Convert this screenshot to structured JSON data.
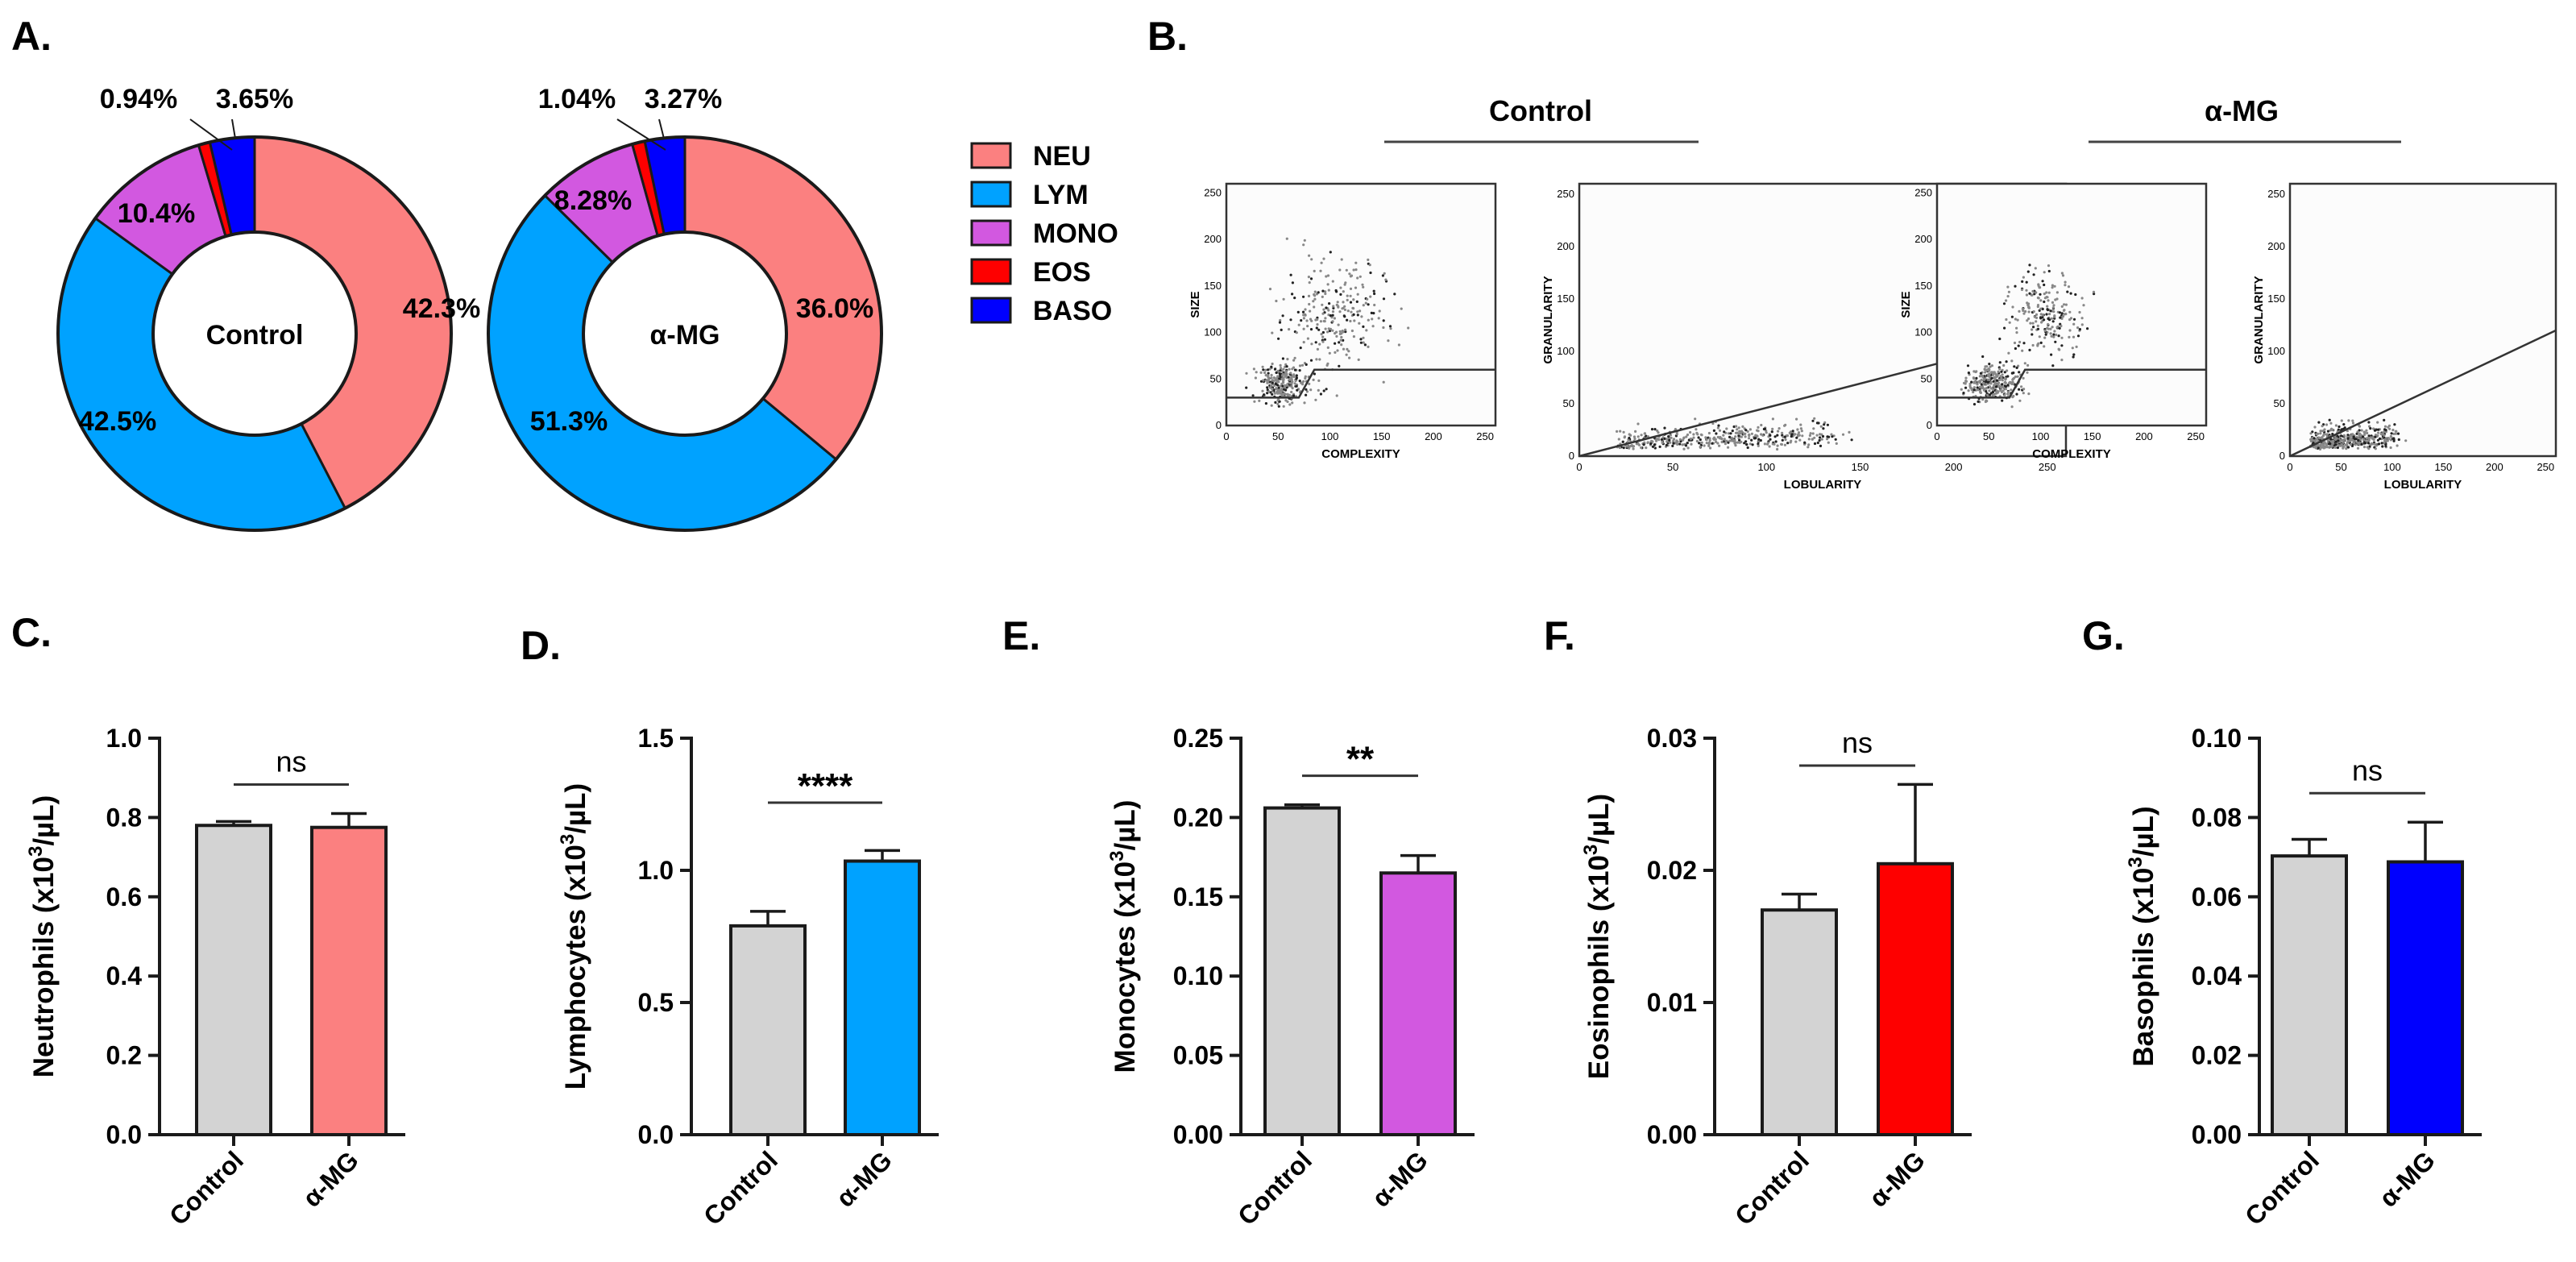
{
  "panels": {
    "A": "A.",
    "B": "B.",
    "C": "C.",
    "D": "D.",
    "E": "E.",
    "F": "F.",
    "G": "G."
  },
  "colors": {
    "NEU": "#fb8080",
    "LYM": "#00a2ff",
    "MONO": "#d258e0",
    "EOS": "#fe0000",
    "BASO": "#0000fe",
    "control_bar": "#d3d3d3",
    "outline": "#1a1a1a"
  },
  "legend": {
    "items": [
      "NEU",
      "LYM",
      "MONO",
      "EOS",
      "BASO"
    ]
  },
  "flow": {
    "titles": [
      "Control",
      "α-MG"
    ],
    "plots": [
      {
        "xlabel": "COMPLEXITY",
        "ylabel": "SIZE"
      },
      {
        "xlabel": "LOBULARITY",
        "ylabel": "GRANULARITY"
      },
      {
        "xlabel": "COMPLEXITY",
        "ylabel": "SIZE"
      },
      {
        "xlabel": "LOBULARITY",
        "ylabel": "GRANULARITY"
      }
    ],
    "ticks": [
      "0",
      "50",
      "100",
      "150",
      "200",
      "250"
    ]
  },
  "chart_data": [
    {
      "type": "pie",
      "title": "Control",
      "categories": [
        "NEU",
        "LYM",
        "MONO",
        "EOS",
        "BASO"
      ],
      "values": [
        42.3,
        42.5,
        10.4,
        0.94,
        3.65
      ],
      "labels": [
        "42.3%",
        "42.5%",
        "10.4%",
        "0.94%",
        "3.65%"
      ]
    },
    {
      "type": "pie",
      "title": "α-MG",
      "categories": [
        "NEU",
        "LYM",
        "MONO",
        "EOS",
        "BASO"
      ],
      "values": [
        36.0,
        51.3,
        8.28,
        1.04,
        3.27
      ],
      "labels": [
        "36.0%",
        "51.3%",
        "8.28%",
        "1.04%",
        "3.27%"
      ]
    },
    {
      "type": "bar",
      "panel": "C",
      "categories": [
        "Control",
        "α-MG"
      ],
      "values": [
        0.78,
        0.775
      ],
      "errors": [
        0.01,
        0.035
      ],
      "ylabel": "Neutrophils (x10³/µL)",
      "ylabel_pre": "Neutrophils (x10",
      "ylabel_post": "/µL)",
      "ylim": [
        0,
        1.0
      ],
      "ticks": [
        "0.0",
        "0.2",
        "0.4",
        "0.6",
        "0.8",
        "1.0"
      ],
      "significance": "ns",
      "colorKey": "NEU"
    },
    {
      "type": "bar",
      "panel": "D",
      "categories": [
        "Control",
        "α-MG"
      ],
      "values": [
        0.79,
        1.035
      ],
      "errors": [
        0.055,
        0.04
      ],
      "ylabel": "Lymphocytes (x10³/µL)",
      "ylabel_pre": "Lymphocytes (x10",
      "ylabel_post": "/µL)",
      "ylim": [
        0,
        1.5
      ],
      "ticks": [
        "0.0",
        "0.5",
        "1.0",
        "1.5"
      ],
      "significance": "****",
      "colorKey": "LYM"
    },
    {
      "type": "bar",
      "panel": "E",
      "categories": [
        "Control",
        "α-MG"
      ],
      "values": [
        0.206,
        0.165
      ],
      "errors": [
        0.002,
        0.011
      ],
      "ylabel": "Monocytes (x10³/µL)",
      "ylabel_pre": "Monocytes (x10",
      "ylabel_post": "/µL)",
      "ylim": [
        0,
        0.25
      ],
      "ticks": [
        "0.00",
        "0.05",
        "0.10",
        "0.15",
        "0.20",
        "0.25"
      ],
      "significance": "**",
      "colorKey": "MONO"
    },
    {
      "type": "bar",
      "panel": "F",
      "categories": [
        "Control",
        "α-MG"
      ],
      "values": [
        0.017,
        0.0205
      ],
      "errors": [
        0.0012,
        0.006
      ],
      "ylabel": "Eosinophils (x10³/µL)",
      "ylabel_pre": "Eosinophils (x10",
      "ylabel_post": "/µL)",
      "ylim": [
        0,
        0.03
      ],
      "ticks": [
        "0.00",
        "0.01",
        "0.02",
        "0.03"
      ],
      "significance": "ns",
      "colorKey": "EOS"
    },
    {
      "type": "bar",
      "panel": "G",
      "categories": [
        "Control",
        "α-MG"
      ],
      "values": [
        0.0703,
        0.0688
      ],
      "errors": [
        0.0042,
        0.01
      ],
      "ylabel": "Basophils (x10³/µL)",
      "ylabel_pre": "Basophils (x10",
      "ylabel_post": "/µL)",
      "ylim": [
        0,
        0.1
      ],
      "ticks": [
        "0.00",
        "0.02",
        "0.04",
        "0.06",
        "0.08",
        "0.10"
      ],
      "significance": "ns",
      "colorKey": "BASO"
    }
  ]
}
